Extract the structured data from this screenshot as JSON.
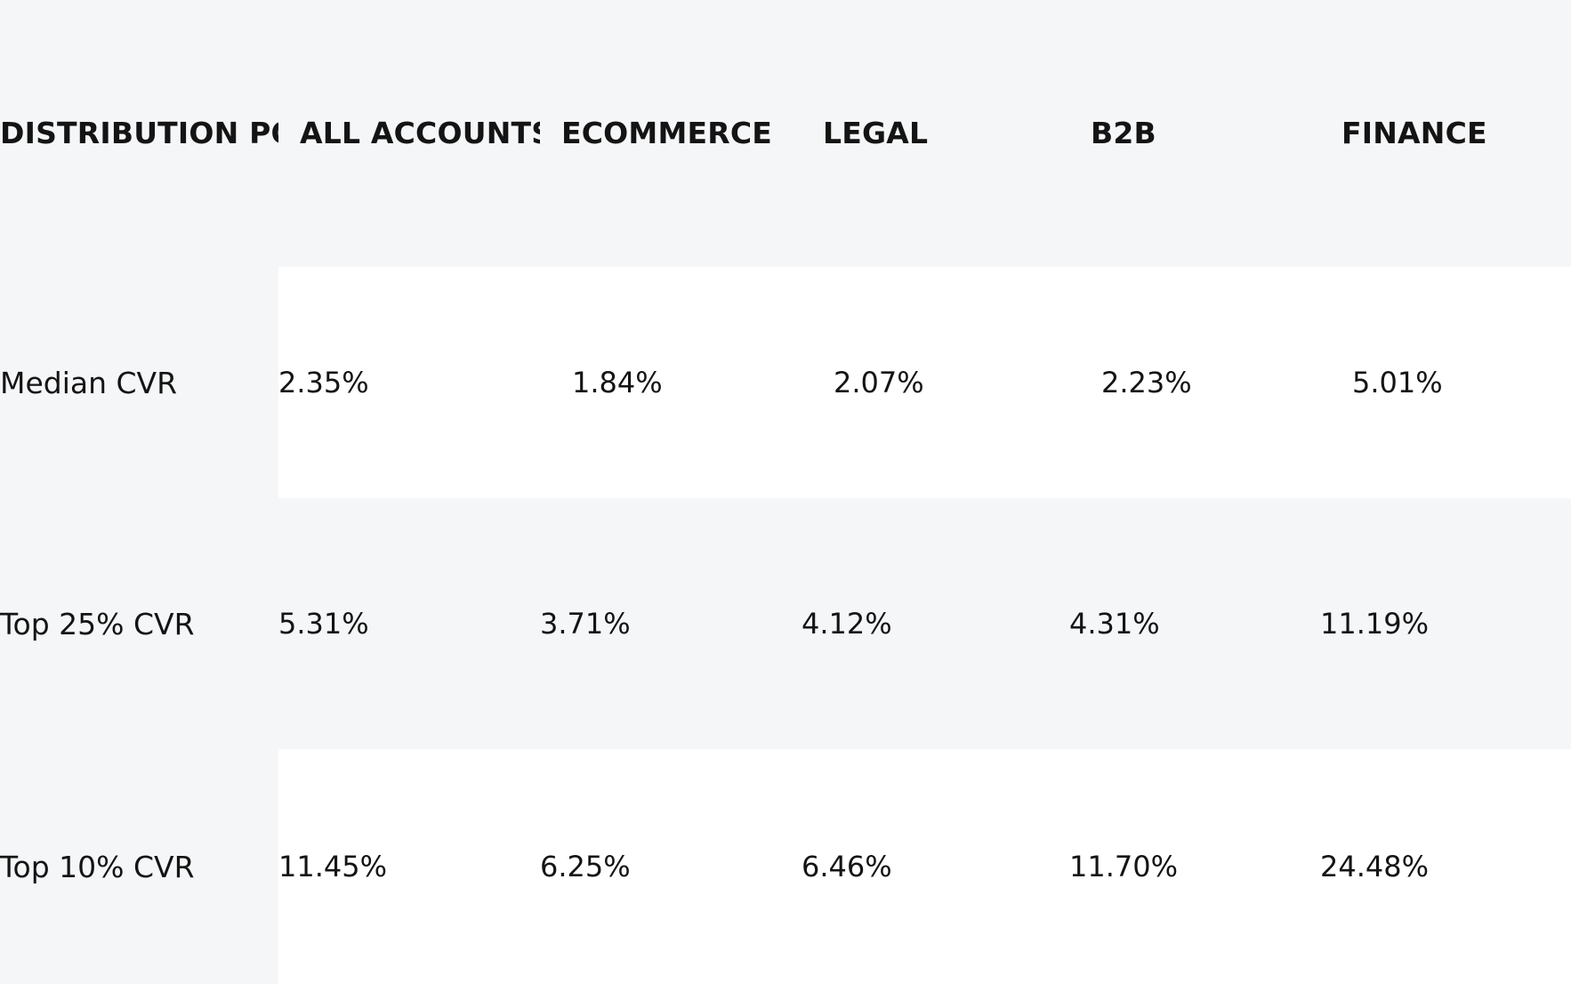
{
  "chart_data": {
    "type": "table",
    "columns": [
      "DISTRIBUTION POINT",
      "ALL ACCOUNTS",
      "ECOMMERCE",
      "LEGAL",
      "B2B",
      "FINANCE"
    ],
    "rows": [
      {
        "label": "Median CVR",
        "values": [
          "2.35%",
          "1.84%",
          "2.07%",
          "2.23%",
          "5.01%"
        ]
      },
      {
        "label": "Top 25% CVR",
        "values": [
          "5.31%",
          "3.71%",
          "4.12%",
          "4.31%",
          "11.19%"
        ]
      },
      {
        "label": "Top 10% CVR",
        "values": [
          "11.45%",
          "6.25%",
          "6.46%",
          "11.70%",
          "24.48%"
        ]
      }
    ]
  },
  "colors": {
    "gray_background": "#f5f6f8",
    "white_background": "#ffffff",
    "text": "#141414"
  }
}
